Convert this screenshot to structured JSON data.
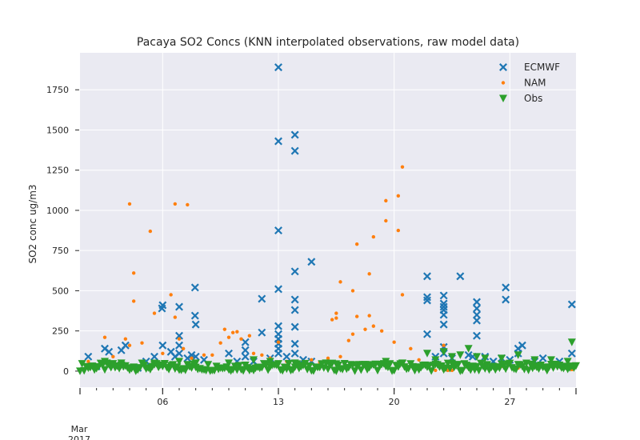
{
  "chart_data": {
    "type": "scatter",
    "title": "Pacaya SO2 Concs (KNN interpolated observations, raw model data)",
    "xlabel": "",
    "ylabel": "SO2 conc ug/m3",
    "x_axis": {
      "type": "date",
      "range": [
        "2017-03-01",
        "2017-03-31"
      ],
      "major_ticks": [
        {
          "date": "2017-03-06",
          "label": "06"
        },
        {
          "date": "2017-03-13",
          "label": "13"
        },
        {
          "date": "2017-03-20",
          "label": "20"
        },
        {
          "date": "2017-03-27",
          "label": "27"
        }
      ],
      "offset_label_line1": "Mar",
      "offset_label_line2": "2017"
    },
    "ylim": [
      -100,
      1980
    ],
    "yticks": [
      0,
      250,
      500,
      750,
      1000,
      1250,
      1500,
      1750
    ],
    "ytick_labels": [
      "0",
      "250",
      "500",
      "750",
      "1000",
      "1250",
      "1500",
      "1750"
    ],
    "grid": true,
    "legend_position": "top-right",
    "series": [
      {
        "name": "ECMWF",
        "color": "#1f77b4",
        "marker": "X",
        "points": [
          {
            "x": "2017-03-01 12:00",
            "y": 90
          },
          {
            "x": "2017-03-02 00:00",
            "y": 30
          },
          {
            "x": "2017-03-02 12:00",
            "y": 140
          },
          {
            "x": "2017-03-02 18:00",
            "y": 120
          },
          {
            "x": "2017-03-03 12:00",
            "y": 130
          },
          {
            "x": "2017-03-03 18:00",
            "y": 160
          },
          {
            "x": "2017-03-04 12:00",
            "y": 20
          },
          {
            "x": "2017-03-05 00:00",
            "y": 60
          },
          {
            "x": "2017-03-05 12:00",
            "y": 90
          },
          {
            "x": "2017-03-05 23:00",
            "y": 390
          },
          {
            "x": "2017-03-06 00:00",
            "y": 410
          },
          {
            "x": "2017-03-06 00:00",
            "y": 160
          },
          {
            "x": "2017-03-06 12:00",
            "y": 120
          },
          {
            "x": "2017-03-06 18:00",
            "y": 90
          },
          {
            "x": "2017-03-07 00:00",
            "y": 400
          },
          {
            "x": "2017-03-07 00:00",
            "y": 220
          },
          {
            "x": "2017-03-07 00:00",
            "y": 160
          },
          {
            "x": "2017-03-07 00:00",
            "y": 110
          },
          {
            "x": "2017-03-07 12:00",
            "y": 80
          },
          {
            "x": "2017-03-07 18:00",
            "y": 100
          },
          {
            "x": "2017-03-07 23:00",
            "y": 520
          },
          {
            "x": "2017-03-07 23:00",
            "y": 345
          },
          {
            "x": "2017-03-08 00:00",
            "y": 290
          },
          {
            "x": "2017-03-08 00:00",
            "y": 90
          },
          {
            "x": "2017-03-08 12:00",
            "y": 70
          },
          {
            "x": "2017-03-10 00:00",
            "y": 110
          },
          {
            "x": "2017-03-10 12:00",
            "y": 60
          },
          {
            "x": "2017-03-11 00:00",
            "y": 180
          },
          {
            "x": "2017-03-11 00:00",
            "y": 130
          },
          {
            "x": "2017-03-11 00:00",
            "y": 90
          },
          {
            "x": "2017-03-11 12:00",
            "y": 60
          },
          {
            "x": "2017-03-12 00:00",
            "y": 240
          },
          {
            "x": "2017-03-12 00:00",
            "y": 450
          },
          {
            "x": "2017-03-12 12:00",
            "y": 80
          },
          {
            "x": "2017-03-13 00:00",
            "y": 1890
          },
          {
            "x": "2017-03-13 00:00",
            "y": 1430
          },
          {
            "x": "2017-03-13 00:00",
            "y": 875
          },
          {
            "x": "2017-03-13 00:00",
            "y": 510
          },
          {
            "x": "2017-03-13 00:00",
            "y": 280
          },
          {
            "x": "2017-03-13 00:00",
            "y": 230
          },
          {
            "x": "2017-03-13 00:00",
            "y": 200
          },
          {
            "x": "2017-03-13 00:00",
            "y": 170
          },
          {
            "x": "2017-03-13 00:00",
            "y": 140
          },
          {
            "x": "2017-03-13 00:00",
            "y": 110
          },
          {
            "x": "2017-03-13 12:00",
            "y": 90
          },
          {
            "x": "2017-03-14 00:00",
            "y": 1470
          },
          {
            "x": "2017-03-14 00:00",
            "y": 1370
          },
          {
            "x": "2017-03-14 00:00",
            "y": 620
          },
          {
            "x": "2017-03-14 00:00",
            "y": 445
          },
          {
            "x": "2017-03-14 00:00",
            "y": 380
          },
          {
            "x": "2017-03-14 00:00",
            "y": 275
          },
          {
            "x": "2017-03-14 00:00",
            "y": 170
          },
          {
            "x": "2017-03-14 00:00",
            "y": 110
          },
          {
            "x": "2017-03-14 12:00",
            "y": 70
          },
          {
            "x": "2017-03-15 00:00",
            "y": 680
          },
          {
            "x": "2017-03-15 00:00",
            "y": 60
          },
          {
            "x": "2017-03-22 00:00",
            "y": 590
          },
          {
            "x": "2017-03-22 00:00",
            "y": 460
          },
          {
            "x": "2017-03-22 00:00",
            "y": 440
          },
          {
            "x": "2017-03-22 00:00",
            "y": 230
          },
          {
            "x": "2017-03-22 12:00",
            "y": 90
          },
          {
            "x": "2017-03-23 00:00",
            "y": 470
          },
          {
            "x": "2017-03-23 00:00",
            "y": 420
          },
          {
            "x": "2017-03-23 00:00",
            "y": 400
          },
          {
            "x": "2017-03-23 00:00",
            "y": 380
          },
          {
            "x": "2017-03-23 00:00",
            "y": 350
          },
          {
            "x": "2017-03-23 00:00",
            "y": 290
          },
          {
            "x": "2017-03-23 00:00",
            "y": 150
          },
          {
            "x": "2017-03-23 00:00",
            "y": 110
          },
          {
            "x": "2017-03-23 12:00",
            "y": 80
          },
          {
            "x": "2017-03-24 00:00",
            "y": 590
          },
          {
            "x": "2017-03-24 12:00",
            "y": 100
          },
          {
            "x": "2017-03-24 18:00",
            "y": 90
          },
          {
            "x": "2017-03-25 00:00",
            "y": 430
          },
          {
            "x": "2017-03-25 00:00",
            "y": 390
          },
          {
            "x": "2017-03-25 00:00",
            "y": 350
          },
          {
            "x": "2017-03-25 00:00",
            "y": 315
          },
          {
            "x": "2017-03-25 00:00",
            "y": 220
          },
          {
            "x": "2017-03-25 12:00",
            "y": 90
          },
          {
            "x": "2017-03-26 00:00",
            "y": 60
          },
          {
            "x": "2017-03-26 12:00",
            "y": 80
          },
          {
            "x": "2017-03-26 18:00",
            "y": 520
          },
          {
            "x": "2017-03-26 18:00",
            "y": 445
          },
          {
            "x": "2017-03-27 00:00",
            "y": 70
          },
          {
            "x": "2017-03-27 12:00",
            "y": 110
          },
          {
            "x": "2017-03-27 12:00",
            "y": 140
          },
          {
            "x": "2017-03-27 18:00",
            "y": 160
          },
          {
            "x": "2017-03-28 12:00",
            "y": 60
          },
          {
            "x": "2017-03-29 00:00",
            "y": 80
          },
          {
            "x": "2017-03-30 00:00",
            "y": 60
          },
          {
            "x": "2017-03-30 18:00",
            "y": 415
          },
          {
            "x": "2017-03-30 18:00",
            "y": 110
          }
        ]
      },
      {
        "name": "NAM",
        "color": "#ff7f0e",
        "marker": "o",
        "points": [
          {
            "x": "2017-03-01 12:00",
            "y": 60
          },
          {
            "x": "2017-03-02 12:00",
            "y": 210
          },
          {
            "x": "2017-03-03 00:00",
            "y": 90
          },
          {
            "x": "2017-03-03 18:00",
            "y": 200
          },
          {
            "x": "2017-03-04 00:00",
            "y": 1040
          },
          {
            "x": "2017-03-04 00:00",
            "y": 160
          },
          {
            "x": "2017-03-04 06:00",
            "y": 610
          },
          {
            "x": "2017-03-04 06:00",
            "y": 435
          },
          {
            "x": "2017-03-04 18:00",
            "y": 175
          },
          {
            "x": "2017-03-05 06:00",
            "y": 870
          },
          {
            "x": "2017-03-05 12:00",
            "y": 360
          },
          {
            "x": "2017-03-06 00:00",
            "y": 110
          },
          {
            "x": "2017-03-06 12:00",
            "y": 475
          },
          {
            "x": "2017-03-06 18:00",
            "y": 335
          },
          {
            "x": "2017-03-06 18:00",
            "y": 1040
          },
          {
            "x": "2017-03-07 00:00",
            "y": 200
          },
          {
            "x": "2017-03-07 06:00",
            "y": 140
          },
          {
            "x": "2017-03-07 12:00",
            "y": 1035
          },
          {
            "x": "2017-03-07 18:00",
            "y": 80
          },
          {
            "x": "2017-03-08 12:00",
            "y": 100
          },
          {
            "x": "2017-03-09 00:00",
            "y": 100
          },
          {
            "x": "2017-03-09 12:00",
            "y": 175
          },
          {
            "x": "2017-03-09 18:00",
            "y": 260
          },
          {
            "x": "2017-03-10 00:00",
            "y": 210
          },
          {
            "x": "2017-03-10 06:00",
            "y": 240
          },
          {
            "x": "2017-03-10 12:00",
            "y": 245
          },
          {
            "x": "2017-03-10 18:00",
            "y": 200
          },
          {
            "x": "2017-03-11 06:00",
            "y": 220
          },
          {
            "x": "2017-03-11 12:00",
            "y": 110
          },
          {
            "x": "2017-03-12 00:00",
            "y": 100
          },
          {
            "x": "2017-03-12 12:00",
            "y": 80
          },
          {
            "x": "2017-03-13 00:00",
            "y": 180
          },
          {
            "x": "2017-03-13 12:00",
            "y": 60
          },
          {
            "x": "2017-03-14 00:00",
            "y": 60
          },
          {
            "x": "2017-03-15 00:00",
            "y": 70
          },
          {
            "x": "2017-03-15 12:00",
            "y": 55
          },
          {
            "x": "2017-03-16 00:00",
            "y": 80
          },
          {
            "x": "2017-03-16 06:00",
            "y": 320
          },
          {
            "x": "2017-03-16 12:00",
            "y": 330
          },
          {
            "x": "2017-03-16 12:00",
            "y": 360
          },
          {
            "x": "2017-03-16 18:00",
            "y": 555
          },
          {
            "x": "2017-03-16 18:00",
            "y": 90
          },
          {
            "x": "2017-03-17 06:00",
            "y": 190
          },
          {
            "x": "2017-03-17 12:00",
            "y": 230
          },
          {
            "x": "2017-03-17 12:00",
            "y": 500
          },
          {
            "x": "2017-03-17 18:00",
            "y": 790
          },
          {
            "x": "2017-03-17 18:00",
            "y": 340
          },
          {
            "x": "2017-03-18 06:00",
            "y": 260
          },
          {
            "x": "2017-03-18 12:00",
            "y": 345
          },
          {
            "x": "2017-03-18 12:00",
            "y": 605
          },
          {
            "x": "2017-03-18 18:00",
            "y": 835
          },
          {
            "x": "2017-03-18 18:00",
            "y": 280
          },
          {
            "x": "2017-03-19 06:00",
            "y": 250
          },
          {
            "x": "2017-03-19 12:00",
            "y": 935
          },
          {
            "x": "2017-03-19 12:00",
            "y": 1060
          },
          {
            "x": "2017-03-20 00:00",
            "y": 180
          },
          {
            "x": "2017-03-20 06:00",
            "y": 875
          },
          {
            "x": "2017-03-20 06:00",
            "y": 1090
          },
          {
            "x": "2017-03-20 12:00",
            "y": 1270
          },
          {
            "x": "2017-03-20 12:00",
            "y": 475
          },
          {
            "x": "2017-03-21 00:00",
            "y": 140
          },
          {
            "x": "2017-03-21 12:00",
            "y": 70
          },
          {
            "x": "2017-03-22 12:00",
            "y": 5
          },
          {
            "x": "2017-03-23 00:00",
            "y": 160
          },
          {
            "x": "2017-03-23 00:00",
            "y": 5
          },
          {
            "x": "2017-03-23 06:00",
            "y": 5
          },
          {
            "x": "2017-03-23 12:00",
            "y": 5
          },
          {
            "x": "2017-03-24 12:00",
            "y": 30
          },
          {
            "x": "2017-03-26 12:00",
            "y": 30
          },
          {
            "x": "2017-03-27 12:00",
            "y": 20
          },
          {
            "x": "2017-03-30 18:00",
            "y": 10
          }
        ]
      },
      {
        "name": "Obs",
        "color": "#2ca02c",
        "marker": "v",
        "points": [
          {
            "x": "2017-03-02 12:00",
            "y": 60
          },
          {
            "x": "2017-03-03 12:00",
            "y": 50
          },
          {
            "x": "2017-03-05 12:00",
            "y": 40
          },
          {
            "x": "2017-03-07 00:00",
            "y": 60
          },
          {
            "x": "2017-03-08 00:00",
            "y": 50
          },
          {
            "x": "2017-03-10 00:00",
            "y": 50
          },
          {
            "x": "2017-03-11 12:00",
            "y": 70
          },
          {
            "x": "2017-03-12 12:00",
            "y": 60
          },
          {
            "x": "2017-03-14 00:00",
            "y": 50
          },
          {
            "x": "2017-03-16 12:00",
            "y": 45
          },
          {
            "x": "2017-03-18 12:00",
            "y": 40
          },
          {
            "x": "2017-03-19 12:00",
            "y": 60
          },
          {
            "x": "2017-03-20 12:00",
            "y": 50
          },
          {
            "x": "2017-03-22 00:00",
            "y": 110
          },
          {
            "x": "2017-03-22 12:00",
            "y": 70
          },
          {
            "x": "2017-03-23 00:00",
            "y": 120
          },
          {
            "x": "2017-03-23 12:00",
            "y": 90
          },
          {
            "x": "2017-03-24 00:00",
            "y": 100
          },
          {
            "x": "2017-03-24 12:00",
            "y": 140
          },
          {
            "x": "2017-03-25 00:00",
            "y": 90
          },
          {
            "x": "2017-03-25 12:00",
            "y": 80
          },
          {
            "x": "2017-03-26 12:00",
            "y": 80
          },
          {
            "x": "2017-03-27 12:00",
            "y": 100
          },
          {
            "x": "2017-03-28 12:00",
            "y": 70
          },
          {
            "x": "2017-03-29 12:00",
            "y": 70
          },
          {
            "x": "2017-03-30 12:00",
            "y": 60
          },
          {
            "x": "2017-03-30 18:00",
            "y": 180
          }
        ],
        "dense_band": {
          "x_range": [
            "2017-03-01",
            "2017-03-31"
          ],
          "y_range": [
            0,
            50
          ]
        }
      }
    ]
  }
}
